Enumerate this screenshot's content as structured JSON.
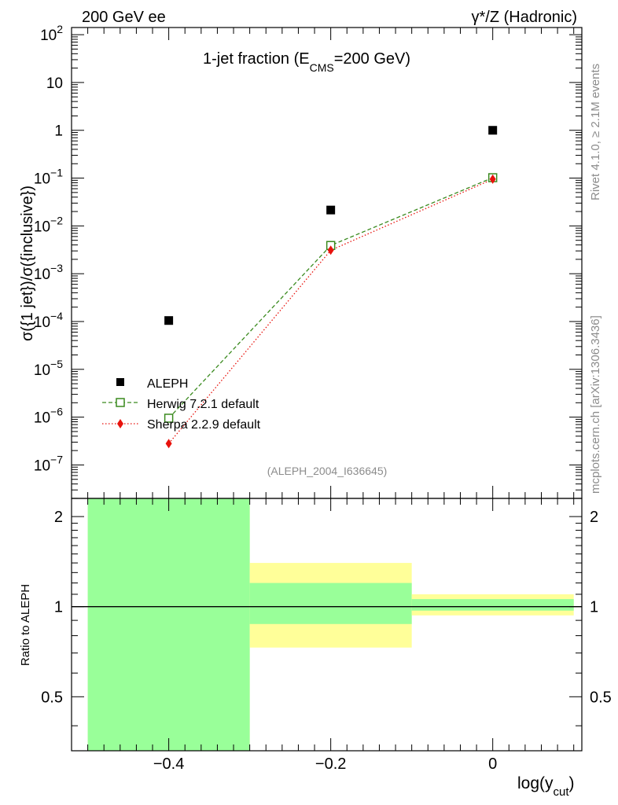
{
  "header": {
    "left_label": "200 GeV ee",
    "right_label": "γ*/Z (Hadronic)"
  },
  "side": {
    "rivet": "Rivet 4.1.0, ≥ 2.1M events",
    "mcplots": "mcplots.cern.ch [arXiv:1306.3436]"
  },
  "chart_data": {
    "type": "scatter",
    "title": "1-jet fraction (E",
    "title_sub": "CMS",
    "title_tail": "=200 GeV)",
    "ylabel": "σ({1 jet})/σ({inclusive})",
    "ratio_ylabel": "Ratio to ALEPH",
    "xlabel": "log(y",
    "xlabel_sub": "cut",
    "xlabel_tail": ")",
    "analysis_tag": "(ALEPH_2004_I636645)",
    "xlim": [
      -0.52,
      0.11
    ],
    "ylim_log": [
      -7.7,
      2.15
    ],
    "ratio_ylim": [
      0.33,
      2.3
    ],
    "x_ticks": [
      -0.4,
      -0.2,
      0
    ],
    "x_tick_labels": [
      "−0.4",
      "−0.2",
      "0"
    ],
    "y_ticks": [
      {
        "exp": 2,
        "base": "10",
        "sup": "2"
      },
      {
        "exp": 1,
        "base": "10",
        "sup": ""
      },
      {
        "exp": 0,
        "base": "1",
        "sup": ""
      },
      {
        "exp": -1,
        "base": "10",
        "sup": "−1"
      },
      {
        "exp": -2,
        "base": "10",
        "sup": "−2"
      },
      {
        "exp": -3,
        "base": "10",
        "sup": "−3"
      },
      {
        "exp": -4,
        "base": "10",
        "sup": "−4"
      },
      {
        "exp": -5,
        "base": "10",
        "sup": "−5"
      },
      {
        "exp": -6,
        "base": "10",
        "sup": "−6"
      },
      {
        "exp": -7,
        "base": "10",
        "sup": "−7"
      }
    ],
    "ratio_ticks": [
      {
        "value": 2,
        "label": "2"
      },
      {
        "value": 1,
        "label": "1"
      },
      {
        "value": 0.5,
        "label": "0.5"
      }
    ],
    "series": [
      {
        "name": "ALEPH",
        "marker": "square",
        "color": "#000000",
        "x": [
          -0.4,
          -0.2,
          0.0
        ],
        "y": [
          0.000105,
          0.0215,
          1.0
        ]
      },
      {
        "name": "Herwig 7.2.1 default",
        "marker": "open-square",
        "color": "#3a8a1e",
        "x": [
          -0.4,
          -0.2,
          0.0
        ],
        "y": [
          9.5e-07,
          0.0039,
          0.102
        ]
      },
      {
        "name": "Sherpa 2.2.9 default",
        "marker": "diamond",
        "color": "#e8120c",
        "x": [
          -0.4,
          -0.2,
          0.0
        ],
        "y": [
          2.8e-07,
          0.0031,
          0.095
        ]
      }
    ],
    "ratio_bands": [
      {
        "x": [
          -0.5,
          -0.3
        ],
        "yellow": [
          0.33,
          2.3
        ],
        "green": [
          0.33,
          2.3
        ]
      },
      {
        "x": [
          -0.3,
          -0.1
        ],
        "yellow": [
          0.73,
          1.4
        ],
        "green": [
          0.875,
          1.2
        ]
      },
      {
        "x": [
          -0.1,
          0.1
        ],
        "yellow": [
          0.935,
          1.1
        ],
        "green": [
          0.97,
          1.06
        ]
      }
    ],
    "colors": {
      "band_yellow": "#ffff99",
      "band_green": "#99ff99",
      "herwig": "#3a8a1e",
      "sherpa": "#e8120c",
      "data": "#000000"
    }
  }
}
